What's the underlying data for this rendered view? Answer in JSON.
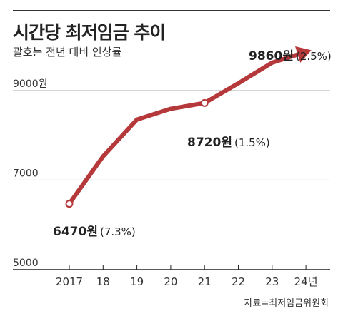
{
  "title": "시간당 최저임금 추이",
  "subtitle": "괄호는 전년 대비 인상률",
  "source": "자료=최저임금위원회",
  "colors": {
    "line": "#b5383a",
    "grid": "#c8c8c8",
    "axis": "#222222"
  },
  "chart_data": {
    "type": "line",
    "title": "시간당 최저임금 추이",
    "subtitle": "괄호는 전년 대비 인상률",
    "categories": [
      "2017",
      "18",
      "19",
      "20",
      "21",
      "22",
      "23",
      "24년"
    ],
    "series": [
      {
        "values": [
          6470,
          7530,
          8350,
          8590,
          8720,
          9160,
          9620,
          9860
        ]
      }
    ],
    "ylim": [
      5000,
      10700
    ],
    "yticks": [
      {
        "value": 5000,
        "label": "5000"
      },
      {
        "value": 7000,
        "label": "7000"
      },
      {
        "value": 9000,
        "label": "9000원"
      }
    ],
    "grid": true,
    "annotations": [
      {
        "index": 0,
        "bold": "6470원",
        "normal": "(7.3%)",
        "marker": true
      },
      {
        "index": 4,
        "bold": "8720원",
        "normal": "(1.5%)",
        "marker": true
      },
      {
        "index": 7,
        "bold": "9860원",
        "normal": "(2.5%)",
        "arrow": true
      }
    ]
  }
}
